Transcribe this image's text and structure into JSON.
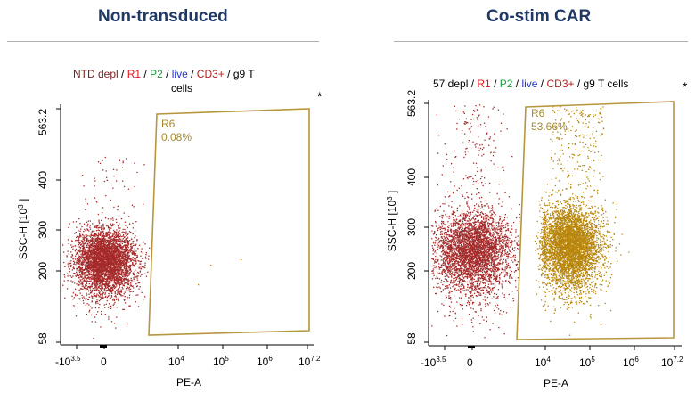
{
  "panels": [
    {
      "title": "Non-transduced",
      "gating_parts": [
        {
          "text": "NTD depl",
          "color": "dark"
        },
        {
          "text": " / ",
          "color": "black"
        },
        {
          "text": "R1",
          "color": "red"
        },
        {
          "text": " / ",
          "color": "black"
        },
        {
          "text": "P2",
          "color": "green"
        },
        {
          "text": " / ",
          "color": "black"
        },
        {
          "text": "live",
          "color": "blue"
        },
        {
          "text": " / ",
          "color": "black"
        },
        {
          "text": "CD3+",
          "color": "maroon"
        },
        {
          "text": " / g9 T",
          "color": "black"
        }
      ],
      "gating_line2": "cells",
      "star": "*",
      "gate_name": "R6",
      "gate_percent": "0.08%"
    },
    {
      "title": "Co-stim CAR",
      "gating_parts": [
        {
          "text": "57 depl",
          "color": "black"
        },
        {
          "text": " / ",
          "color": "black"
        },
        {
          "text": "R1",
          "color": "red"
        },
        {
          "text": " / ",
          "color": "black"
        },
        {
          "text": "P2",
          "color": "green"
        },
        {
          "text": " / ",
          "color": "black"
        },
        {
          "text": "live",
          "color": "blue"
        },
        {
          "text": " / ",
          "color": "black"
        },
        {
          "text": "CD3+",
          "color": "maroon"
        },
        {
          "text": " / g9 T cells",
          "color": "black"
        }
      ],
      "gating_line2": "",
      "star": "*",
      "gate_name": "R6",
      "gate_percent": "53.66%"
    }
  ],
  "colors": {
    "title": "#1f3864",
    "r1_population": "#a52a2a",
    "gated_population": "#b8860b",
    "gate_outline": "#b8963e"
  },
  "chart_data": [
    {
      "type": "scatter",
      "title": "Non-transduced",
      "xlabel": "PE-A",
      "ylabel": "SSC-H [10^3]",
      "x_scale": "biexponential",
      "xlim": [
        -3.5,
        7.2
      ],
      "ylim": [
        58,
        563.2
      ],
      "x_ticks": [
        "-10^3.5",
        "0",
        "10^4",
        "10^5",
        "10^6",
        "10^7.2"
      ],
      "y_ticks": [
        "58",
        "200",
        "300",
        "400",
        "563.2"
      ],
      "populations": [
        {
          "name": "ungated",
          "color": "#a52a2a",
          "center_x": 0,
          "center_y": 180,
          "events": "dense"
        },
        {
          "name": "R6",
          "color": "#b8860b",
          "percent": 0.08
        }
      ],
      "gate": {
        "name": "R6",
        "percent": "0.08%"
      }
    },
    {
      "type": "scatter",
      "title": "Co-stim CAR",
      "xlabel": "PE-A",
      "ylabel": "SSC-H [10^3]",
      "x_scale": "biexponential",
      "xlim": [
        -3.5,
        7.2
      ],
      "ylim": [
        58,
        563.2
      ],
      "x_ticks": [
        "-10^3.5",
        "0",
        "10^4",
        "10^5",
        "10^6",
        "10^7.2"
      ],
      "y_ticks": [
        "58",
        "200",
        "300",
        "400",
        "563.2"
      ],
      "populations": [
        {
          "name": "ungated",
          "color": "#a52a2a",
          "center_x": 0,
          "center_y": 190,
          "events": "dense"
        },
        {
          "name": "R6",
          "color": "#b8860b",
          "center_x": 4.6,
          "center_y": 200,
          "percent": 53.66
        }
      ],
      "gate": {
        "name": "R6",
        "percent": "53.66%"
      }
    }
  ]
}
